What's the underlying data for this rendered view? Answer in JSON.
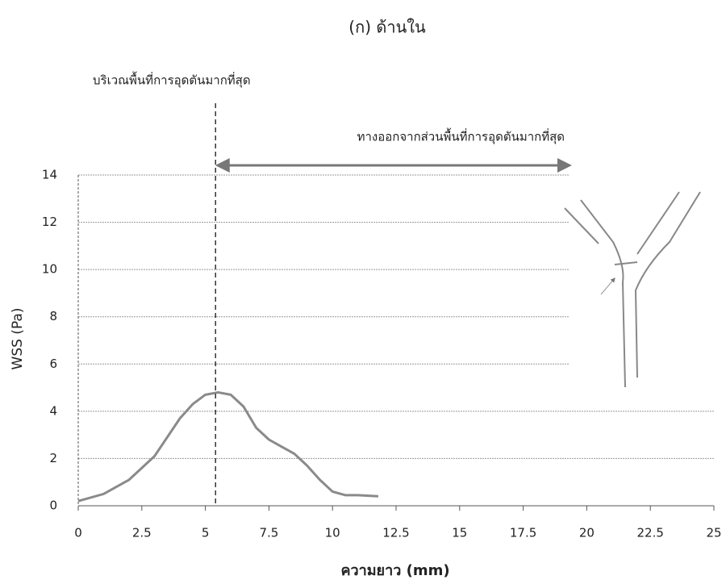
{
  "chart_data": {
    "type": "line",
    "title": "(ก) ด้านใน",
    "xlabel": "ความยาว (mm)",
    "ylabel": "WSS (Pa)",
    "x": [
      0,
      1,
      2,
      3,
      3.5,
      4,
      4.5,
      5,
      5.5,
      6,
      6.5,
      7,
      7.5,
      8,
      8.5,
      9,
      9.5,
      10,
      10.5,
      11,
      11.8
    ],
    "series": [
      {
        "color": "#8a8a8a",
        "values": [
          0.2,
          0.5,
          1.1,
          2.1,
          2.9,
          3.7,
          4.3,
          4.7,
          4.8,
          4.7,
          4.2,
          3.3,
          2.8,
          2.5,
          2.2,
          1.7,
          1.1,
          0.6,
          0.45,
          0.45,
          0.4
        ]
      }
    ],
    "xlim": [
      0,
      25
    ],
    "ylim": [
      0,
      14
    ],
    "xticks": [
      0,
      2.5,
      5,
      7.5,
      10,
      12.5,
      15,
      17.5,
      20,
      22.5,
      25
    ],
    "yticks": [
      0,
      2,
      4,
      6,
      8,
      10,
      12,
      14
    ],
    "grid": true,
    "annotations": [
      {
        "text": "บริเวณพื้นที่การอุดตันมากที่สุด",
        "x": 5.4
      },
      {
        "text": "ทางออกจากส่วนพื้นที่การอุดตันมากที่สุด",
        "x": [
          5.5,
          19.3
        ]
      }
    ]
  }
}
